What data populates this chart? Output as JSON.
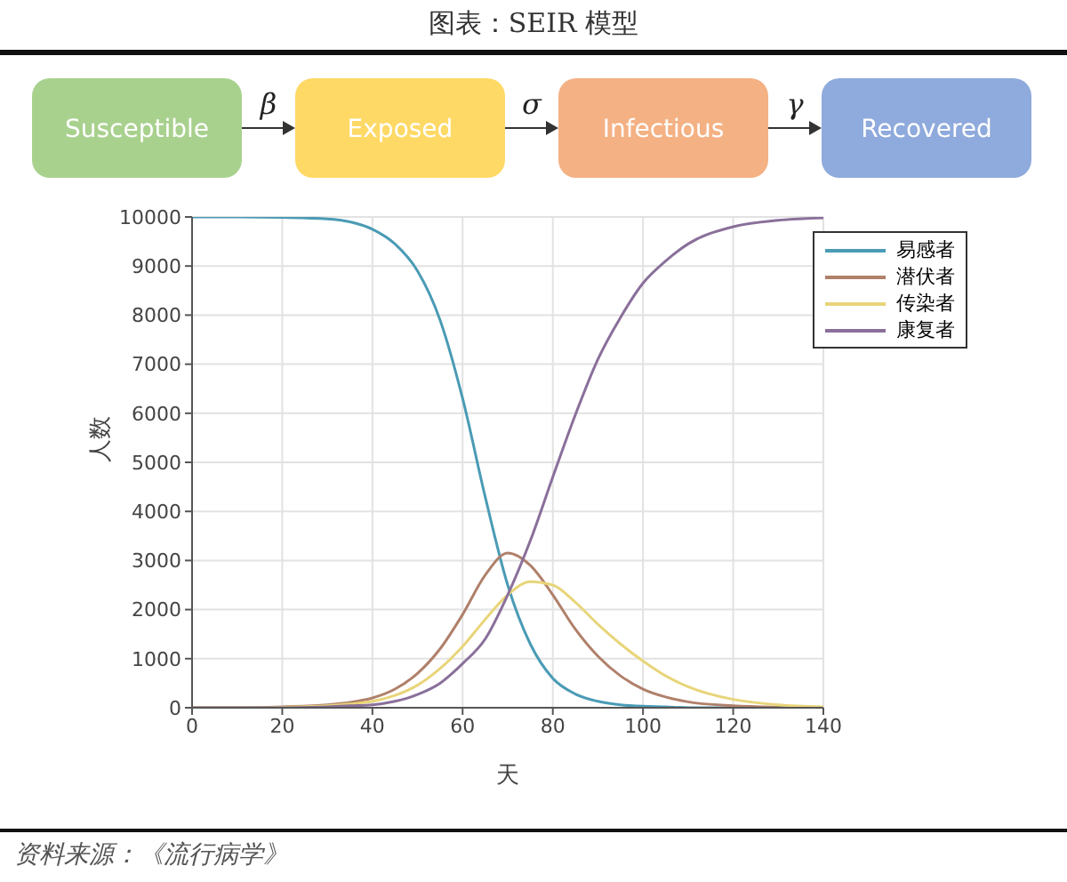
{
  "chart_data": {
    "type": "line",
    "title": "图表：SEIR 模型",
    "xlabel": "天",
    "ylabel": "人数",
    "annotations": [
      "Susceptible",
      "β",
      "Exposed",
      "σ",
      "Infectious",
      "γ",
      "Recovered",
      "资料来源：《流行病学》"
    ],
    "x": [
      0,
      10,
      20,
      30,
      35,
      40,
      45,
      50,
      55,
      60,
      65,
      70,
      75,
      80,
      85,
      90,
      95,
      100,
      105,
      110,
      120,
      130,
      140
    ],
    "series": [
      {
        "name": "易感者",
        "color": "#4a9bb5",
        "values": [
          10000,
          10000,
          9990,
          9960,
          9900,
          9750,
          9450,
          8900,
          7900,
          6300,
          4300,
          2500,
          1300,
          600,
          280,
          130,
          60,
          30,
          20,
          0,
          0,
          0,
          0
        ]
      },
      {
        "name": "潜伏者",
        "color": "#b0806a",
        "values": [
          0,
          0,
          20,
          60,
          110,
          200,
          380,
          700,
          1200,
          1900,
          2700,
          3150,
          2900,
          2300,
          1600,
          1050,
          650,
          380,
          220,
          120,
          40,
          10,
          0
        ]
      },
      {
        "name": "传染者",
        "color": "#e8d57a",
        "values": [
          0,
          0,
          10,
          40,
          75,
          130,
          250,
          460,
          800,
          1250,
          1800,
          2300,
          2570,
          2500,
          2150,
          1700,
          1300,
          950,
          650,
          430,
          170,
          60,
          20
        ]
      },
      {
        "name": "康复者",
        "color": "#8a6f9a",
        "values": [
          0,
          0,
          0,
          20,
          40,
          60,
          130,
          270,
          500,
          900,
          1400,
          2300,
          3400,
          4700,
          5970,
          7100,
          7950,
          8650,
          9100,
          9450,
          9800,
          9930,
          9980
        ]
      }
    ],
    "xlim": [
      0,
      140
    ],
    "xticks": [
      0,
      20,
      40,
      60,
      80,
      100,
      120,
      140
    ],
    "ylim": [
      0,
      10000
    ],
    "yticks": [
      0,
      1000,
      2000,
      3000,
      4000,
      5000,
      6000,
      7000,
      8000,
      9000,
      10000
    ],
    "grid": true,
    "legend": "top right",
    "marker": "none",
    "line_style": "solid"
  }
}
